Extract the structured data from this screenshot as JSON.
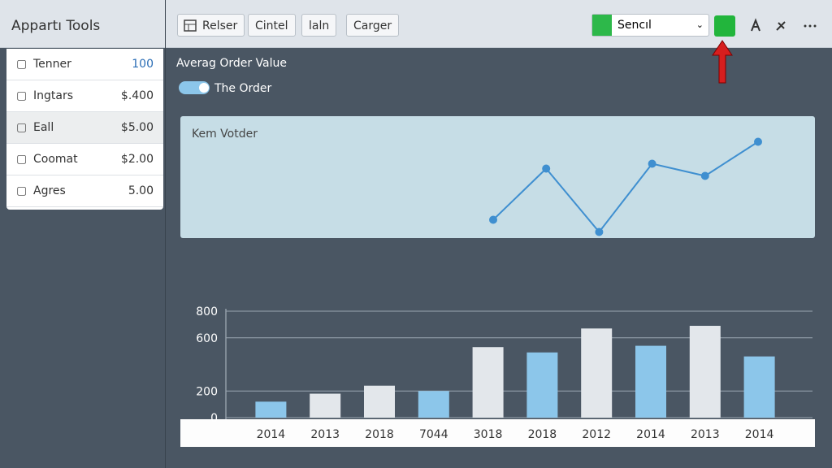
{
  "app_title": "Appartı Tools",
  "toolbar": {
    "buttons": [
      "Relser",
      "Cintel",
      "laln",
      "Carger"
    ],
    "select": "Sencıl"
  },
  "sidebar": {
    "items": [
      {
        "label": "Tenner",
        "value": "100"
      },
      {
        "label": "Ingtars",
        "value": "$.400"
      },
      {
        "label": "Eall",
        "value": "$5.00"
      },
      {
        "label": "Coomat",
        "value": "$2.00"
      },
      {
        "label": "Agres",
        "value": "5.00"
      }
    ]
  },
  "panel": {
    "title": "Averag Order Value",
    "toggle": "The Order"
  },
  "chart_data": [
    {
      "type": "line",
      "title": "Kem Votder",
      "categories": [
        null,
        null,
        null,
        null,
        null,
        null
      ],
      "values": [
        15,
        57,
        5,
        61,
        51,
        79
      ],
      "ylim": [
        0,
        100
      ],
      "color": "#3f8fd0"
    },
    {
      "type": "bar",
      "categories": [
        "2014",
        "2013",
        "2018",
        "7044",
        "3018",
        "2018",
        "2012",
        "2014",
        "2013",
        "2014"
      ],
      "values": [
        120,
        180,
        240,
        200,
        530,
        490,
        670,
        540,
        690,
        460
      ],
      "colors": [
        "#8cc6ea",
        "#e3e7eb",
        "#e3e7eb",
        "#8cc6ea",
        "#e3e7eb",
        "#8cc6ea",
        "#e3e7eb",
        "#8cc6ea",
        "#e3e7eb",
        "#8cc6ea"
      ],
      "ylim": [
        0,
        800
      ],
      "yticks": [
        0,
        200,
        600,
        800
      ],
      "grid": true
    }
  ]
}
